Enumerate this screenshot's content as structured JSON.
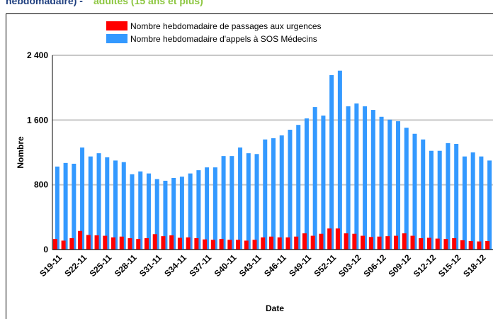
{
  "chart_data": {
    "type": "bar",
    "title": "hebdomadaire) -",
    "subtitle": "adultes (15 ans et plus)",
    "y_label": "Nombre",
    "x_label": "Date",
    "categories": [
      "S19-11",
      null,
      null,
      "S22-11",
      null,
      null,
      "S25-11",
      null,
      null,
      "S28-11",
      null,
      null,
      "S31-11",
      null,
      null,
      "S34-11",
      null,
      null,
      "S37-11",
      null,
      null,
      "S40-11",
      null,
      null,
      "S43-11",
      null,
      null,
      "S46-11",
      null,
      null,
      "S49-11",
      null,
      null,
      "S52-11",
      null,
      null,
      "S03-12",
      null,
      null,
      "S06-12",
      null,
      null,
      "S09-12",
      null,
      null,
      "S12-12",
      null,
      null,
      "S15-12",
      null,
      null,
      "S18-12",
      null
    ],
    "series": [
      {
        "name": "Nombre hebdomadaire de passages aux urgences",
        "color": "#ff0000",
        "values": [
          130,
          110,
          140,
          230,
          180,
          175,
          170,
          150,
          160,
          140,
          130,
          140,
          190,
          165,
          175,
          145,
          150,
          140,
          125,
          120,
          130,
          120,
          120,
          110,
          120,
          150,
          160,
          150,
          150,
          160,
          200,
          170,
          195,
          260,
          260,
          200,
          195,
          170,
          155,
          160,
          165,
          170,
          200,
          170,
          140,
          145,
          135,
          130,
          140,
          115,
          105,
          100,
          105
        ]
      },
      {
        "name": "Nombre hebdomadaire d'appels à SOS Médecins",
        "color": "#3399ff",
        "values": [
          1025,
          1070,
          1060,
          1260,
          1150,
          1190,
          1140,
          1100,
          1080,
          930,
          965,
          940,
          870,
          850,
          885,
          900,
          940,
          980,
          1015,
          1015,
          1155,
          1155,
          1260,
          1190,
          1180,
          1360,
          1375,
          1410,
          1480,
          1540,
          1620,
          1760,
          1655,
          2155,
          2210,
          1770,
          1805,
          1770,
          1725,
          1640,
          1605,
          1585,
          1505,
          1430,
          1360,
          1220,
          1220,
          1315,
          1305,
          1150,
          1200,
          1150,
          1100
        ]
      }
    ],
    "ylim": [
      0,
      2400
    ],
    "yticks": [
      0,
      800,
      {
        "value": 1600,
        "label": "1 600"
      },
      {
        "value": 2400,
        "label": "2 400"
      }
    ],
    "grid": true
  }
}
